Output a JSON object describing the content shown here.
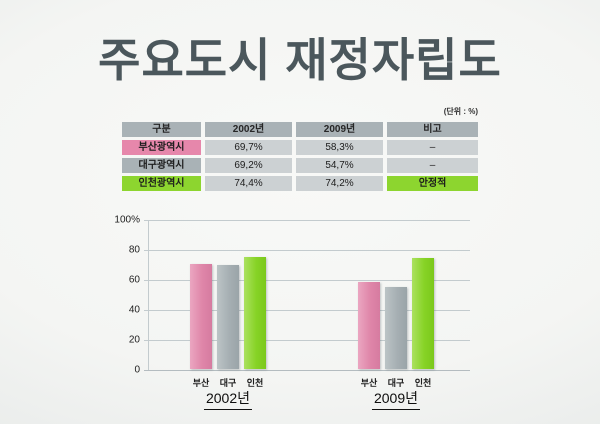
{
  "title": "주요도시 재정자립도",
  "unit_label": "(단위 : %)",
  "table": {
    "headers": [
      "구분",
      "2002년",
      "2009년",
      "비고"
    ],
    "rows": [
      {
        "name": "부산광역시",
        "y2002": "69,7%",
        "y2009": "58,3%",
        "note": "–",
        "row_color": "#e687ab"
      },
      {
        "name": "대구광역시",
        "y2002": "69,2%",
        "y2009": "54,7%",
        "note": "–",
        "row_color": "#a9b2b6"
      },
      {
        "name": "인천광역시",
        "y2002": "74,4%",
        "y2009": "74,2%",
        "note": "안정적",
        "row_color": "#8dd52f"
      }
    ]
  },
  "chart_data": {
    "type": "bar",
    "title": "주요도시 재정자립도",
    "ylabel": "%",
    "ylim": [
      0,
      100
    ],
    "yticks": [
      "100%",
      "80",
      "60",
      "40",
      "20",
      "0"
    ],
    "grid": true,
    "legend": false,
    "groups": [
      {
        "label": "2002년",
        "categories": [
          "부산",
          "대구",
          "인천"
        ],
        "values": [
          69.7,
          69.2,
          74.4
        ]
      },
      {
        "label": "2009년",
        "categories": [
          "부산",
          "대구",
          "인천"
        ],
        "values": [
          58.3,
          54.7,
          74.2
        ]
      }
    ],
    "colors": {
      "busan": "#df86a9",
      "daegu": "#a6afb3",
      "incheon": "#87d326"
    }
  }
}
